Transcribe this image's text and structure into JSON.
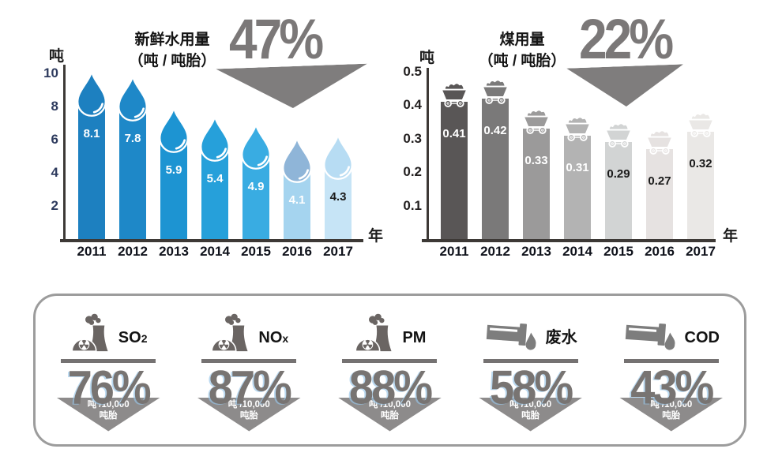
{
  "chart_data": [
    {
      "type": "bar",
      "id": "water",
      "title": "新鲜水用量",
      "title_sub": "（吨 / 吨胎）",
      "unit": "吨",
      "xunit": "年",
      "reduction_label": "47%",
      "categories": [
        "2011",
        "2012",
        "2013",
        "2014",
        "2015",
        "2016",
        "2017"
      ],
      "values": [
        8.1,
        7.8,
        5.9,
        5.4,
        4.9,
        4.1,
        4.3
      ],
      "ylim": [
        0,
        10
      ],
      "yticks": [
        "2",
        "4",
        "6",
        "8",
        "10"
      ],
      "tick_color": "#2e3b5e",
      "grid": false,
      "icon": "water-drop",
      "bar_colors": [
        "#1d80c0",
        "#1e88c8",
        "#1d94d2",
        "#26a0da",
        "#39ace2",
        "#a5d4ef",
        "#c6e4f6"
      ],
      "icon_colors": [
        "#1d80c0",
        "#1e88c8",
        "#1d94d2",
        "#26a0da",
        "#39ace2",
        "#8fb5d8",
        "#b7dcf3"
      ],
      "value_colors": [
        "#ffffff",
        "#ffffff",
        "#ffffff",
        "#ffffff",
        "#ffffff",
        "#ffffff",
        "#1a1a1a"
      ]
    },
    {
      "type": "bar",
      "id": "coal",
      "title": "煤用量",
      "title_sub": "（吨 / 吨胎）",
      "unit": "吨",
      "xunit": "年",
      "reduction_label": "22%",
      "categories": [
        "2011",
        "2012",
        "2013",
        "2014",
        "2015",
        "2016",
        "2017"
      ],
      "values": [
        0.41,
        0.42,
        0.33,
        0.31,
        0.29,
        0.27,
        0.32
      ],
      "ylim": [
        0,
        0.5
      ],
      "yticks": [
        "0.1",
        "0.2",
        "0.3",
        "0.4",
        "0.5"
      ],
      "tick_color": "#221f1f",
      "grid": false,
      "icon": "coal-cart",
      "bar_colors": [
        "#595656",
        "#7a7979",
        "#9b9a9a",
        "#b3b3b3",
        "#d2d4d4",
        "#e6e2e1",
        "#eae8e6"
      ],
      "icon_colors": [
        "#595656",
        "#7a7979",
        "#9b9a9a",
        "#b3b3b3",
        "#d2d4d4",
        "#e6e2e1",
        "#eae8e6"
      ],
      "value_colors": [
        "#ffffff",
        "#ffffff",
        "#ffffff",
        "#ffffff",
        "#1a1a1a",
        "#1a1a1a",
        "#1a1a1a"
      ]
    },
    {
      "type": "table",
      "id": "reductions",
      "unit_line1": "吨 /10,000",
      "unit_line2": "吨胎",
      "items": [
        {
          "label": "SO2",
          "icon": "plant",
          "value": "76%"
        },
        {
          "label": "NOx",
          "icon": "plant",
          "value": "87%"
        },
        {
          "label": "PM",
          "icon": "plant",
          "value": "88%"
        },
        {
          "label": "废水",
          "icon": "pipe",
          "value": "58%"
        },
        {
          "label": "COD",
          "icon": "pipe",
          "value": "43%"
        }
      ]
    }
  ],
  "colors": {
    "axis": "#3d3936",
    "reduction_arrow": "#7f7d7d",
    "panel_border": "#9c9c9c",
    "panel_triangle": "#8d8b8b",
    "plant_icon": "#6a6563",
    "pipe_icon": "#7d7d7d",
    "big_percent": "#787472"
  }
}
